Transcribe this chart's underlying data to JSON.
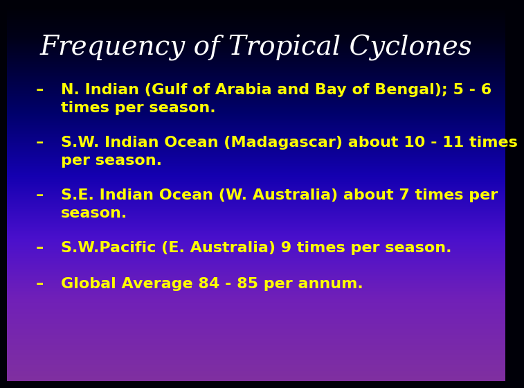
{
  "title": "Frequency of Tropical Cyclones",
  "title_color": "#FFFFFF",
  "title_fontstyle": "italic",
  "title_fontsize": 28,
  "bullet_color": "#FFFF00",
  "bullet_fontsize": 16,
  "bullets": [
    {
      "dash": "–",
      "line1": "N. Indian (Gulf of Arabia and Bay of Bengal); 5 - 6",
      "line2": "times per season."
    },
    {
      "dash": "–",
      "line1": "S.W. Indian Ocean (Madagascar) about 10 - 11 times",
      "line2": "per season."
    },
    {
      "dash": "–",
      "line1": "S.E. Indian Ocean (W. Australia) about 7 times per",
      "line2": "season."
    },
    {
      "dash": "–",
      "line1": "S.W.Pacific (E. Australia) 9 times per season.",
      "line2": null
    },
    {
      "dash": "–",
      "line1": "Global Average 84 - 85 per annum.",
      "line2": null
    }
  ],
  "gradient_colors": [
    "#000008",
    "#000018",
    "#00006A",
    "#1400B0",
    "#4A10CC",
    "#7020B8",
    "#8030A0"
  ],
  "gradient_stops": [
    0.0,
    0.08,
    0.28,
    0.45,
    0.62,
    0.78,
    1.0
  ]
}
